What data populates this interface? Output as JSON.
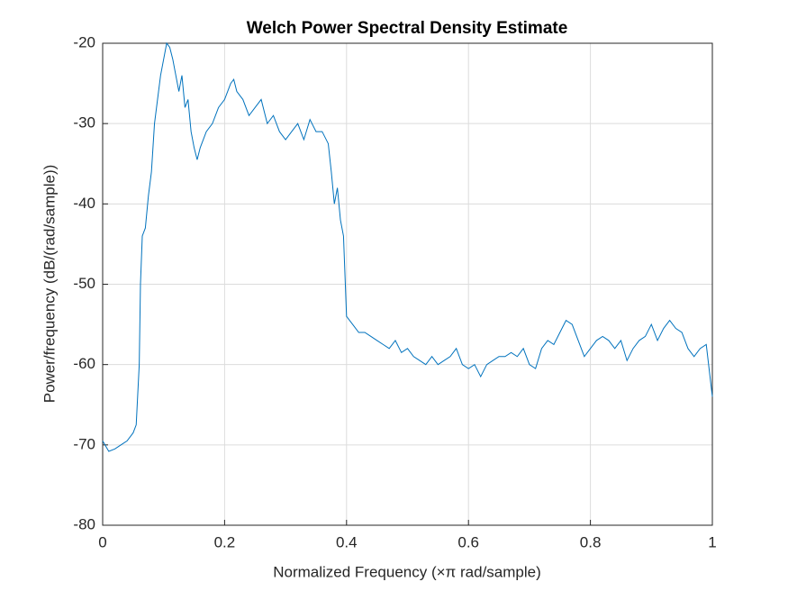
{
  "chart_data": {
    "type": "line",
    "title": "Welch Power Spectral Density Estimate",
    "xlabel": "Normalized Frequency  (×π rad/sample)",
    "ylabel": "Power/frequency (dB/(rad/sample))",
    "color": "#0072bd",
    "x": [
      0,
      0.01,
      0.02,
      0.03,
      0.04,
      0.05,
      0.055,
      0.06,
      0.062,
      0.065,
      0.07,
      0.075,
      0.08,
      0.085,
      0.09,
      0.095,
      0.1,
      0.105,
      0.11,
      0.115,
      0.12,
      0.125,
      0.13,
      0.135,
      0.14,
      0.145,
      0.15,
      0.155,
      0.16,
      0.17,
      0.18,
      0.19,
      0.2,
      0.21,
      0.215,
      0.22,
      0.23,
      0.24,
      0.25,
      0.26,
      0.27,
      0.28,
      0.29,
      0.3,
      0.31,
      0.32,
      0.33,
      0.34,
      0.35,
      0.36,
      0.37,
      0.375,
      0.38,
      0.385,
      0.39,
      0.395,
      0.4,
      0.41,
      0.42,
      0.43,
      0.44,
      0.45,
      0.46,
      0.47,
      0.48,
      0.49,
      0.5,
      0.51,
      0.52,
      0.53,
      0.54,
      0.55,
      0.56,
      0.57,
      0.58,
      0.59,
      0.6,
      0.61,
      0.62,
      0.63,
      0.64,
      0.65,
      0.66,
      0.67,
      0.68,
      0.69,
      0.7,
      0.71,
      0.72,
      0.73,
      0.74,
      0.75,
      0.76,
      0.77,
      0.78,
      0.79,
      0.8,
      0.81,
      0.82,
      0.83,
      0.84,
      0.85,
      0.86,
      0.87,
      0.88,
      0.89,
      0.9,
      0.91,
      0.92,
      0.93,
      0.94,
      0.95,
      0.96,
      0.97,
      0.98,
      0.99,
      1
    ],
    "values": [
      -69.5,
      -70.8,
      -70.5,
      -70,
      -69.5,
      -68.5,
      -67.5,
      -60,
      -50,
      -44,
      -43,
      -39,
      -36,
      -30,
      -27,
      -24,
      -22,
      -20,
      -20.5,
      -22,
      -24,
      -26,
      -24,
      -28,
      -27,
      -31,
      -33,
      -34.5,
      -33,
      -31,
      -30,
      -28,
      -27,
      -25,
      -24.5,
      -26,
      -27,
      -29,
      -28,
      -27,
      -30,
      -29,
      -31,
      -32,
      -31,
      -30,
      -32,
      -29.5,
      -31,
      -31,
      -32.5,
      -36,
      -40,
      -38,
      -42,
      -44,
      -54,
      -55,
      -56,
      -56,
      -56.5,
      -57,
      -57.5,
      -58,
      -57,
      -58.5,
      -58,
      -59,
      -59.5,
      -60,
      -59,
      -60,
      -59.5,
      -59,
      -58,
      -60,
      -60.5,
      -60,
      -61.5,
      -60,
      -59.5,
      -59,
      -59,
      -58.5,
      -59,
      -58,
      -60,
      -60.5,
      -58,
      -57,
      -57.5,
      -56,
      -54.5,
      -55,
      -57,
      -59,
      -58,
      -57,
      -56.5,
      -57,
      -58,
      -57,
      -59.5,
      -58,
      -57,
      -56.5,
      -55,
      -57,
      -55.5,
      -54.5,
      -55.5,
      -56,
      -58,
      -59,
      -58,
      -57.5,
      -64
    ],
    "xlim": [
      0,
      1
    ],
    "xticks": [
      0,
      0.2,
      0.4,
      0.6,
      0.8,
      1
    ],
    "ylim": [
      -80,
      -20
    ],
    "yticks": [
      -80,
      -70,
      -60,
      -50,
      -40,
      -30,
      -20
    ],
    "grid": true
  }
}
